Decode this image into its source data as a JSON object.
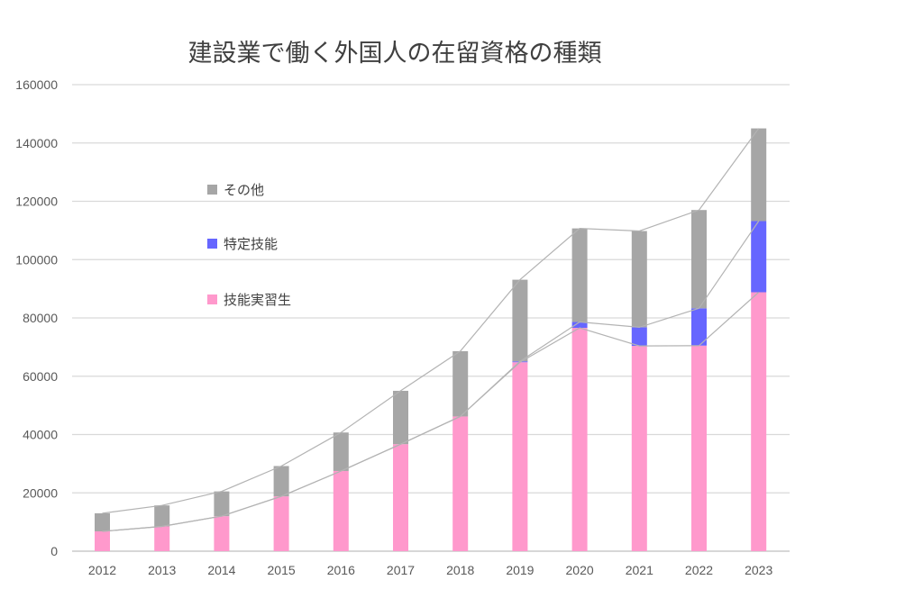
{
  "chart_data": {
    "type": "bar",
    "stacked": true,
    "title": "建設業で働く外国人の在留資格の種類",
    "xlabel": "",
    "ylabel": "",
    "categories": [
      "2012",
      "2013",
      "2014",
      "2015",
      "2016",
      "2017",
      "2018",
      "2019",
      "2020",
      "2021",
      "2022",
      "2023"
    ],
    "series": [
      {
        "name": "技能実習生",
        "color": "#ff99cc",
        "values": [
          6800,
          8500,
          12000,
          18800,
          27500,
          36700,
          46200,
          64800,
          76600,
          70400,
          70500,
          88800
        ]
      },
      {
        "name": "特定技能",
        "color": "#6666ff",
        "values": [
          0,
          0,
          0,
          0,
          0,
          0,
          0,
          300,
          2000,
          6400,
          12800,
          24400
        ]
      },
      {
        "name": "その他",
        "color": "#a6a6a6",
        "values": [
          6200,
          7200,
          8500,
          10400,
          13200,
          18300,
          22400,
          28000,
          32100,
          33000,
          33700,
          31800
        ]
      }
    ],
    "ylim": [
      0,
      160000
    ],
    "yticks": [
      0,
      20000,
      40000,
      60000,
      80000,
      100000,
      120000,
      140000,
      160000
    ],
    "grid": true,
    "series_lines": true,
    "legend_position": "upper-left inside plot"
  }
}
